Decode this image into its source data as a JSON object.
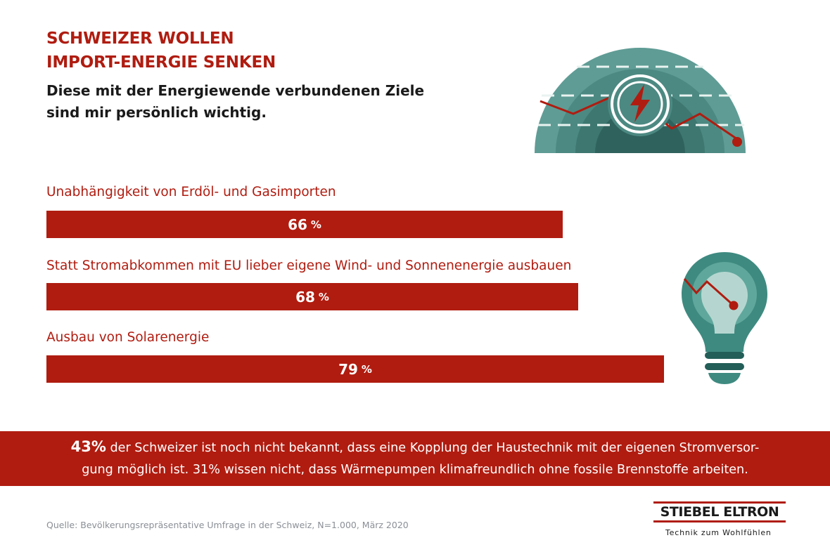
{
  "header": {
    "title_line1": "SCHWEIZER WOLLEN",
    "title_line2": "IMPORT-ENERGIE SENKEN",
    "subtitle_line1": "Diese mit der Energiewende verbundenen Ziele",
    "subtitle_line2": "sind mir persönlich wichtig."
  },
  "chart_data": {
    "type": "bar",
    "orientation": "horizontal",
    "title": "SCHWEIZER WOLLEN IMPORT-ENERGIE SENKEN",
    "categories": [
      "Unabhängigkeit von Erdöl- und Gasimporten",
      "Statt Stromabkommen mit EU lieber eigene Wind- und Sonnenenergie ausbauen",
      "Ausbau von Solarenergie"
    ],
    "values": [
      66,
      68,
      79
    ],
    "value_labels": [
      "66",
      "68",
      "79"
    ],
    "unit": "%",
    "xlim": [
      0,
      100
    ],
    "grid": false,
    "legend": "none",
    "bar_color": "#b01c10"
  },
  "banner": {
    "highlight": "43%",
    "line1_rest": " der Schweizer ist noch nicht bekannt, dass eine Kopplung der Haustechnik mit der eigenen Stromversor-",
    "line2": "gung möglich ist. 31% wissen nicht, dass Wärmepumpen klimafreundlich ohne fossile Brennstoffe arbeiten."
  },
  "footer": {
    "source": "Quelle: Bevölkerungsrepräsentative Umfrage in der Schweiz, N=1.000, März 2020",
    "brand": "STIEBEL ELTRON",
    "tagline": "Technik zum Wohlfühlen"
  },
  "colors": {
    "accent": "#b01c10",
    "teal_outer": "#5f9c95",
    "teal_mid": "#4c8982",
    "teal_inner": "#3d7770",
    "teal_core": "#2f625d"
  },
  "icons": [
    "gauge-lightning-icon",
    "light-bulb-icon"
  ]
}
